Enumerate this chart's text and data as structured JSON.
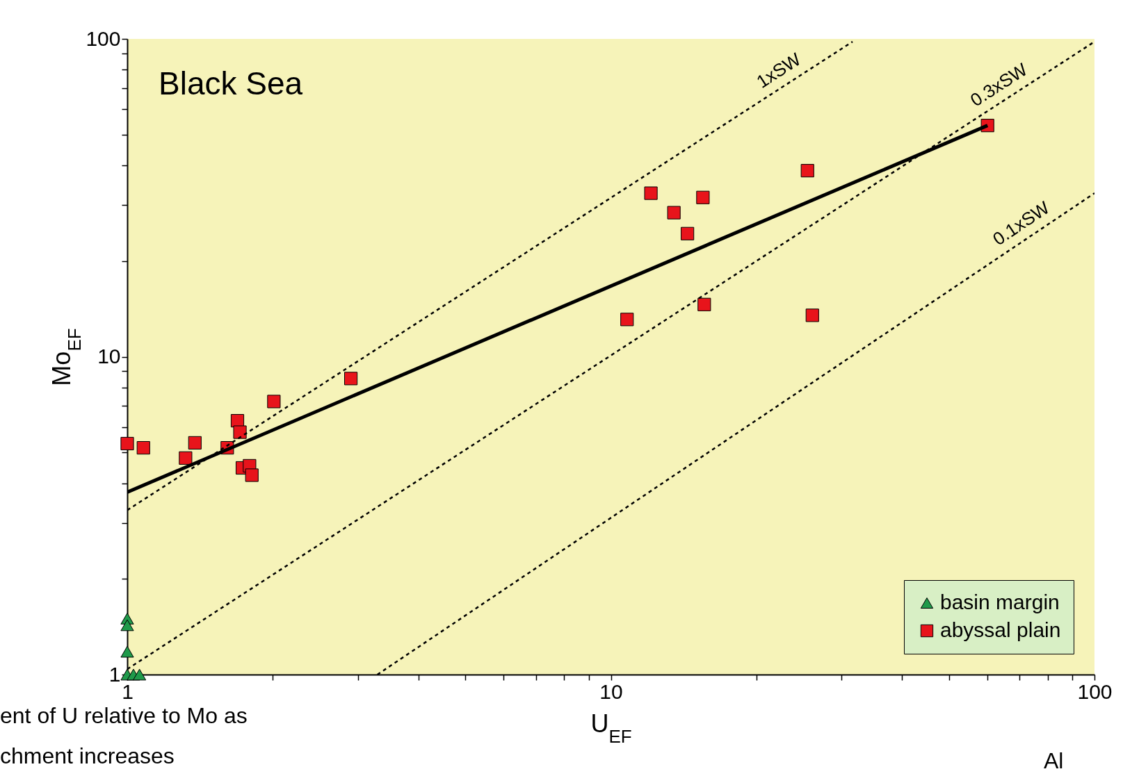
{
  "chart_data": {
    "type": "scatter",
    "title": "Black Sea",
    "xlabel": "U$_{EF}$",
    "ylabel": "Mo$_{EF}$",
    "log": "xy",
    "grid": false,
    "legend": "bottom right",
    "xlim": [
      1,
      100
    ],
    "ylim": [
      1,
      100
    ],
    "xticks": [
      1,
      {
        "value": 2,
        "label": null
      },
      {
        "value": 3,
        "label": null
      },
      {
        "value": 4,
        "label": null
      },
      {
        "value": 5,
        "label": null
      },
      {
        "value": 6,
        "label": null
      },
      {
        "value": 7,
        "label": null
      },
      {
        "value": 8,
        "label": null
      },
      {
        "value": 9,
        "label": null
      },
      10,
      {
        "value": 20,
        "label": null
      },
      {
        "value": 30,
        "label": null
      },
      {
        "value": 40,
        "label": null
      },
      {
        "value": 50,
        "label": null
      },
      {
        "value": 60,
        "label": null
      },
      {
        "value": 70,
        "label": null
      },
      {
        "value": 80,
        "label": null
      },
      {
        "value": 90,
        "label": null
      },
      100
    ],
    "yticks": [
      1,
      {
        "value": 2,
        "label": null
      },
      {
        "value": 3,
        "label": null
      },
      {
        "value": 4,
        "label": null
      },
      {
        "value": 5,
        "label": null
      },
      {
        "value": 6,
        "label": null
      },
      {
        "value": 7,
        "label": null
      },
      {
        "value": 8,
        "label": null
      },
      {
        "value": 9,
        "label": null
      },
      10,
      {
        "value": 20,
        "label": null
      },
      {
        "value": 30,
        "label": null
      },
      {
        "value": 40,
        "label": null
      },
      {
        "value": 50,
        "label": null
      },
      {
        "value": 60,
        "label": null
      },
      {
        "value": 70,
        "label": null
      },
      {
        "value": 80,
        "label": null
      },
      {
        "value": 90,
        "label": null
      },
      100
    ],
    "series": [
      {
        "name": "basin margin",
        "marker": "triangle",
        "color": "#1f9a4a",
        "x": [
          1,
          1,
          1,
          1,
          1.03,
          1.06
        ],
        "values": [
          1.5,
          1.43,
          1.18,
          1.0,
          1.0,
          1.0
        ]
      },
      {
        "name": "abyssal plain",
        "marker": "square",
        "color": "#e8141b",
        "x": [
          1,
          1.08,
          1.32,
          1.38,
          1.61,
          1.69,
          1.71,
          1.73,
          1.79,
          1.81,
          2.01,
          2.9,
          10.8,
          12.1,
          13.5,
          14.4,
          15.5,
          15.6,
          25.5,
          26.1,
          60.1
        ],
        "values": [
          5.33,
          5.17,
          4.8,
          5.36,
          5.17,
          6.29,
          5.79,
          4.47,
          4.54,
          4.24,
          7.23,
          8.54,
          13.1,
          32.7,
          28.4,
          24.4,
          31.7,
          14.6,
          38.5,
          13.5,
          53.4
        ]
      },
      {
        "type": "line",
        "line_style": "solid",
        "color": "#000000",
        "x": [
          1,
          60.1
        ],
        "values": [
          3.75,
          53.4
        ]
      },
      {
        "name": "1xSW",
        "type": "line",
        "line_style": "dashed",
        "color": "#000000",
        "x": [
          1,
          31.6
        ],
        "values": [
          3.29,
          98
        ]
      },
      {
        "name": "0.3xSW",
        "type": "line",
        "line_style": "dashed",
        "color": "#000000",
        "x": [
          1,
          100
        ],
        "values": [
          1.04,
          98
        ]
      },
      {
        "name": "0.1xSW",
        "type": "line",
        "line_style": "dashed",
        "color": "#000000",
        "x": [
          3.29,
          100
        ],
        "values": [
          1,
          32.7
        ]
      }
    ],
    "annotations": [
      "ent of U relative to Mo as",
      "chment increases",
      "Al"
    ]
  }
}
